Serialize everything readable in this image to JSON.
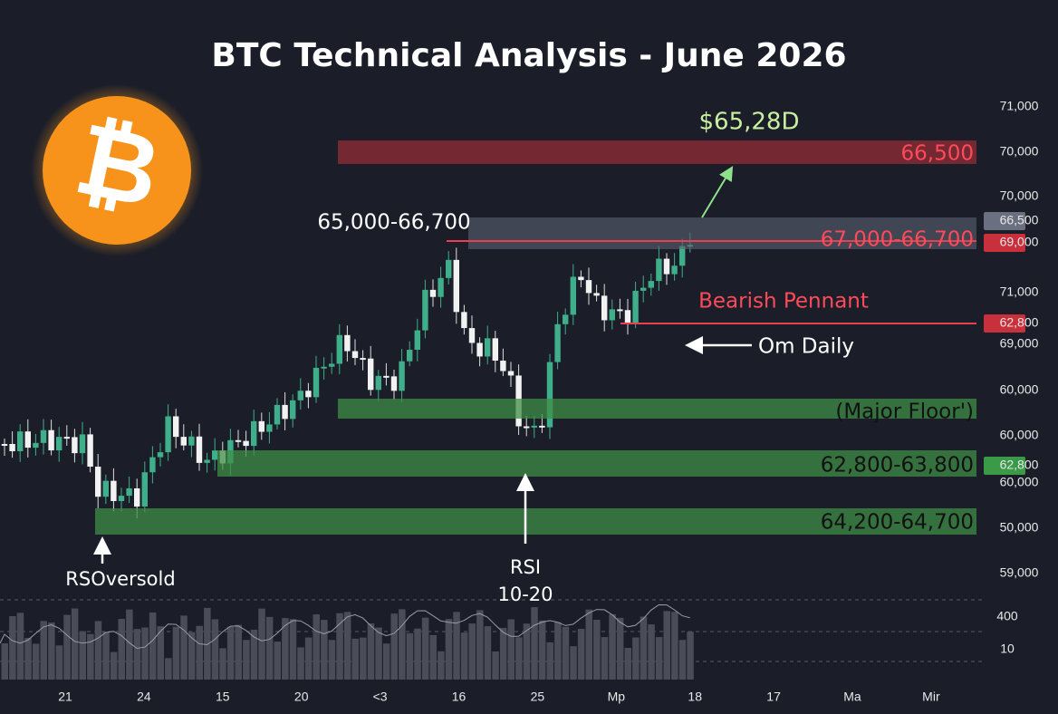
{
  "title": "BTC Technical Analysis - June 2026",
  "price_axis": [
    "71,000",
    "70,000",
    "70,000",
    "66,500",
    "69,000",
    "71,000",
    "62,800",
    "69,000",
    "60,000",
    "60,000",
    "62,800",
    "60,000",
    "50,000",
    "59,000"
  ],
  "volume_axis": [
    "400",
    "10"
  ],
  "time_axis": [
    "21",
    "24",
    "15",
    "20",
    "<3",
    "16",
    "25",
    "Mp",
    "18",
    "17",
    "Ma",
    "Mir"
  ],
  "annotations": {
    "target": "$65,28D",
    "resistance_top": "66,500",
    "range_left": "65,000-66,700",
    "range_right": "67,000-66,700",
    "pattern": "Bearish Pennant",
    "timeframe": "Om Daily",
    "floor": "(Major Floor')",
    "support_1": "62,800-63,800",
    "support_2": "64,200-64,700",
    "rsi_oversold": "RSOversold",
    "rsi_label": "RSI",
    "rsi_range": "10-20"
  }
}
